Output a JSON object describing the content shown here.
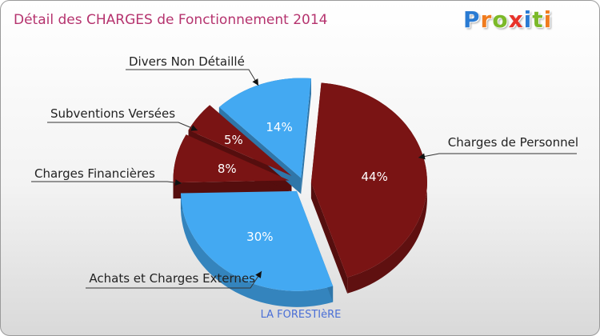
{
  "title": "Détail des CHARGES de Fonctionnement 2014",
  "logo": {
    "text": "Proxiti",
    "letter_colors": [
      "#2a7bd3",
      "#f07c1e",
      "#7bb928",
      "#e8332a",
      "#2a7bd3",
      "#7bb928",
      "#f07c1e"
    ]
  },
  "caption": "LA FORESTIèRE",
  "colors": {
    "blue": "#43a9f2",
    "dark_red": "#7a1414",
    "title": "#b5336e",
    "caption": "#4a6fd6"
  },
  "chart_data": {
    "type": "pie",
    "title": "Détail des CHARGES de Fonctionnement 2014",
    "slices": [
      {
        "label": "Charges de Personnel",
        "value": 44,
        "value_label": "44%",
        "color": "#7a1414"
      },
      {
        "label": "Achats et Charges Externes",
        "value": 30,
        "value_label": "30%",
        "color": "#43a9f2"
      },
      {
        "label": "Charges Financières",
        "value": 8,
        "value_label": "8%",
        "color": "#7a1414"
      },
      {
        "label": "Subventions Versées",
        "value": 5,
        "value_label": "5%",
        "color": "#7a1414"
      },
      {
        "label": "Divers Non Détaillé",
        "value": 14,
        "value_label": "14%",
        "color": "#43a9f2"
      }
    ]
  }
}
